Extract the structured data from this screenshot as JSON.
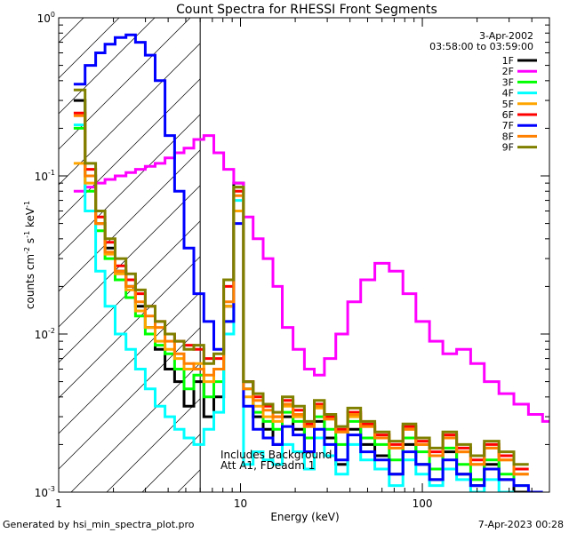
{
  "chart_data": {
    "type": "line",
    "title": "Count Spectra for RHESSI Front Segments",
    "xlabel": "Energy (keV)",
    "ylabel_parts": [
      "counts cm",
      "-2",
      " s",
      "-1",
      " keV",
      "-1"
    ],
    "xscale": "log",
    "yscale": "log",
    "xlim": [
      1,
      500
    ],
    "ylim": [
      0.001,
      1
    ],
    "x_ticks": [
      {
        "value": 1,
        "label": "1"
      },
      {
        "value": 10,
        "label": "10"
      },
      {
        "value": 100,
        "label": "100"
      }
    ],
    "y_ticks": [
      {
        "value": 0.001,
        "base": "10",
        "exp": "-3"
      },
      {
        "value": 0.01,
        "base": "10",
        "exp": "-2"
      },
      {
        "value": 0.1,
        "base": "10",
        "exp": "-1"
      },
      {
        "value": 1,
        "base": "10",
        "exp": "0"
      }
    ],
    "grid": false,
    "legend_position": "top-right",
    "date": "3-Apr-2002",
    "time_range": "03:58:00 to 03:59:00",
    "annotations": [
      "Includes Background",
      "Att A1, FDeadm 1"
    ],
    "hatched_region_xmax": 6,
    "attenuator_line_x": 6,
    "series": [
      {
        "name": "1F",
        "color": "#000000",
        "x": [
          1.3,
          1.5,
          1.7,
          1.9,
          2.2,
          2.5,
          2.8,
          3.2,
          3.6,
          4.1,
          4.6,
          5.2,
          5.9,
          6.7,
          7.6,
          8.6,
          9.8,
          11,
          12.5,
          14.2,
          16,
          18,
          21,
          24,
          27,
          31,
          36,
          42,
          50,
          60,
          72,
          85,
          100,
          120,
          140,
          170,
          200,
          240,
          290,
          350
        ],
        "values": [
          0.3,
          0.1,
          0.05,
          0.035,
          0.025,
          0.02,
          0.015,
          0.011,
          0.008,
          0.006,
          0.005,
          0.0035,
          0.005,
          0.003,
          0.004,
          0.015,
          0.09,
          0.005,
          0.003,
          0.0025,
          0.002,
          0.003,
          0.0025,
          0.0018,
          0.0028,
          0.0022,
          0.0015,
          0.0025,
          0.002,
          0.0017,
          0.0013,
          0.002,
          0.0015,
          0.0012,
          0.0018,
          0.0013,
          0.0011,
          0.0015,
          0.0012,
          0.001
        ]
      },
      {
        "name": "2F",
        "color": "#ff00ff",
        "x": [
          1.3,
          1.5,
          1.7,
          1.9,
          2.2,
          2.5,
          2.8,
          3.2,
          3.6,
          4.1,
          4.6,
          5.2,
          5.9,
          6.7,
          7.6,
          8.6,
          9.8,
          11,
          12.5,
          14.2,
          16,
          18,
          21,
          24,
          27,
          31,
          36,
          42,
          50,
          60,
          72,
          85,
          100,
          120,
          140,
          170,
          200,
          240,
          290,
          350,
          420,
          500
        ],
        "values": [
          0.08,
          0.085,
          0.09,
          0.095,
          0.1,
          0.105,
          0.11,
          0.115,
          0.12,
          0.13,
          0.14,
          0.15,
          0.17,
          0.18,
          0.14,
          0.11,
          0.09,
          0.055,
          0.04,
          0.03,
          0.02,
          0.011,
          0.008,
          0.006,
          0.0055,
          0.007,
          0.01,
          0.016,
          0.022,
          0.028,
          0.025,
          0.018,
          0.012,
          0.009,
          0.0075,
          0.008,
          0.0065,
          0.005,
          0.0042,
          0.0036,
          0.0031,
          0.0028
        ]
      },
      {
        "name": "3F",
        "color": "#00ff00",
        "x": [
          1.3,
          1.5,
          1.7,
          1.9,
          2.2,
          2.5,
          2.8,
          3.2,
          3.6,
          4.1,
          4.6,
          5.2,
          5.9,
          6.7,
          7.6,
          8.6,
          9.8,
          11,
          12.5,
          14.2,
          16,
          18,
          21,
          24,
          27,
          31,
          36,
          42,
          50,
          60,
          72,
          85,
          100,
          120,
          140,
          170,
          200,
          240,
          290,
          350
        ],
        "values": [
          0.2,
          0.08,
          0.045,
          0.03,
          0.022,
          0.017,
          0.013,
          0.01,
          0.0085,
          0.0075,
          0.006,
          0.0045,
          0.0055,
          0.004,
          0.005,
          0.012,
          0.085,
          0.0045,
          0.0032,
          0.0028,
          0.0025,
          0.0032,
          0.0028,
          0.0022,
          0.003,
          0.0025,
          0.002,
          0.0028,
          0.0022,
          0.002,
          0.0016,
          0.0022,
          0.0018,
          0.0014,
          0.0019,
          0.0015,
          0.0012,
          0.0016,
          0.0013,
          0.0011
        ]
      },
      {
        "name": "4F",
        "color": "#00ffff",
        "x": [
          1.3,
          1.5,
          1.7,
          1.9,
          2.2,
          2.5,
          2.8,
          3.2,
          3.6,
          4.1,
          4.6,
          5.2,
          5.9,
          6.7,
          7.6,
          8.6,
          9.8,
          11,
          12.5,
          14.2,
          16,
          18,
          21,
          24,
          27,
          31,
          36,
          42,
          50,
          60,
          72,
          85,
          100,
          120,
          140,
          170,
          200,
          240,
          290
        ],
        "values": [
          0.21,
          0.06,
          0.025,
          0.015,
          0.01,
          0.008,
          0.006,
          0.0045,
          0.0035,
          0.003,
          0.0025,
          0.0022,
          0.002,
          0.0025,
          0.0032,
          0.01,
          0.07,
          0.0015,
          0.0018,
          0.0016,
          0.0015,
          0.002,
          0.0018,
          0.0014,
          0.0022,
          0.0017,
          0.0013,
          0.002,
          0.0016,
          0.0014,
          0.0011,
          0.0016,
          0.0013,
          0.0011,
          0.0014,
          0.0012,
          0.001,
          0.0012,
          0.001
        ]
      },
      {
        "name": "5F",
        "color": "#ffa500",
        "x": [
          1.3,
          1.5,
          1.7,
          1.9,
          2.2,
          2.5,
          2.8,
          3.2,
          3.6,
          4.1,
          4.6,
          5.2,
          5.9,
          6.7,
          7.6,
          8.6,
          9.8,
          11,
          12.5,
          14.2,
          16,
          18,
          21,
          24,
          27,
          31,
          36,
          42,
          50,
          60,
          72,
          85,
          100,
          120,
          140,
          170,
          200,
          240,
          290,
          350
        ],
        "values": [
          0.12,
          0.09,
          0.05,
          0.032,
          0.024,
          0.019,
          0.014,
          0.011,
          0.009,
          0.008,
          0.007,
          0.006,
          0.0065,
          0.005,
          0.006,
          0.015,
          0.06,
          0.004,
          0.0035,
          0.003,
          0.0028,
          0.0035,
          0.003,
          0.0026,
          0.0034,
          0.0029,
          0.0024,
          0.003,
          0.0026,
          0.0022,
          0.0019,
          0.0025,
          0.002,
          0.0017,
          0.0022,
          0.0018,
          0.0015,
          0.0019,
          0.0016,
          0.0013
        ]
      },
      {
        "name": "6F",
        "color": "#ff0000",
        "x": [
          1.3,
          1.5,
          1.7,
          1.9,
          2.2,
          2.5,
          2.8,
          3.2,
          3.6,
          4.1,
          4.6,
          5.2,
          5.9,
          6.7,
          7.6,
          8.6,
          9.8,
          11,
          12.5,
          14.2,
          16,
          18,
          21,
          24,
          27,
          31,
          36,
          42,
          50,
          60,
          72,
          85,
          100,
          120,
          140,
          170,
          200,
          240,
          290,
          350
        ],
        "values": [
          0.25,
          0.11,
          0.055,
          0.038,
          0.027,
          0.022,
          0.018,
          0.015,
          0.012,
          0.01,
          0.009,
          0.0085,
          0.008,
          0.007,
          0.007,
          0.02,
          0.08,
          0.005,
          0.004,
          0.0035,
          0.003,
          0.0038,
          0.0033,
          0.0027,
          0.0036,
          0.003,
          0.0025,
          0.0032,
          0.0027,
          0.0023,
          0.002,
          0.0026,
          0.0021,
          0.0018,
          0.0023,
          0.0019,
          0.0016,
          0.002,
          0.0017,
          0.0014
        ]
      },
      {
        "name": "7F",
        "color": "#0000ff",
        "x": [
          1.3,
          1.5,
          1.7,
          1.9,
          2.2,
          2.5,
          2.8,
          3.2,
          3.6,
          4.1,
          4.6,
          5.2,
          5.9,
          6.7,
          7.6,
          8.6,
          9.8,
          11,
          12.5,
          14.2,
          16,
          18,
          21,
          24,
          27,
          31,
          36,
          42,
          50,
          60,
          72,
          85,
          100,
          120,
          140,
          170,
          200,
          240,
          290,
          350,
          420
        ],
        "values": [
          0.38,
          0.5,
          0.6,
          0.68,
          0.75,
          0.78,
          0.7,
          0.58,
          0.4,
          0.18,
          0.08,
          0.035,
          0.018,
          0.012,
          0.008,
          0.012,
          0.05,
          0.0035,
          0.0025,
          0.0022,
          0.002,
          0.0026,
          0.0023,
          0.0018,
          0.0025,
          0.002,
          0.0016,
          0.0023,
          0.0018,
          0.0016,
          0.0013,
          0.0018,
          0.0015,
          0.0012,
          0.0016,
          0.0013,
          0.0011,
          0.0014,
          0.0012,
          0.0011,
          0.001
        ]
      },
      {
        "name": "8F",
        "color": "#ff8000",
        "x": [
          1.3,
          1.5,
          1.7,
          1.9,
          2.2,
          2.5,
          2.8,
          3.2,
          3.6,
          4.1,
          4.6,
          5.2,
          5.9,
          6.7,
          7.6,
          8.6,
          9.8,
          11,
          12.5,
          14.2,
          16,
          18,
          21,
          24,
          27,
          31,
          36,
          42,
          50,
          60,
          72,
          85,
          100,
          120,
          140,
          170,
          200,
          240,
          290,
          350
        ],
        "values": [
          0.24,
          0.1,
          0.05,
          0.033,
          0.025,
          0.02,
          0.016,
          0.013,
          0.011,
          0.009,
          0.0075,
          0.0065,
          0.006,
          0.0055,
          0.006,
          0.016,
          0.075,
          0.0045,
          0.0038,
          0.0033,
          0.003,
          0.0036,
          0.0031,
          0.0026,
          0.0035,
          0.0029,
          0.0024,
          0.0031,
          0.0026,
          0.0022,
          0.0019,
          0.0025,
          0.002,
          0.0017,
          0.0022,
          0.0018,
          0.0015,
          0.0019,
          0.0016,
          0.0013
        ]
      },
      {
        "name": "9F",
        "color": "#808000",
        "x": [
          1.3,
          1.5,
          1.7,
          1.9,
          2.2,
          2.5,
          2.8,
          3.2,
          3.6,
          4.1,
          4.6,
          5.2,
          5.9,
          6.7,
          7.6,
          8.6,
          9.8,
          11,
          12.5,
          14.2,
          16,
          18,
          21,
          24,
          27,
          31,
          36,
          42,
          50,
          60,
          72,
          85,
          100,
          120,
          140,
          170,
          200,
          240,
          290,
          350
        ],
        "values": [
          0.35,
          0.12,
          0.06,
          0.04,
          0.03,
          0.024,
          0.019,
          0.015,
          0.012,
          0.01,
          0.009,
          0.008,
          0.0085,
          0.0065,
          0.0075,
          0.022,
          0.085,
          0.005,
          0.0042,
          0.0036,
          0.0032,
          0.004,
          0.0035,
          0.0028,
          0.0038,
          0.0031,
          0.0026,
          0.0034,
          0.0028,
          0.0024,
          0.0021,
          0.0027,
          0.0022,
          0.0019,
          0.0024,
          0.002,
          0.0017,
          0.0021,
          0.0018,
          0.0015
        ]
      }
    ]
  },
  "footer": {
    "left": "Generated by hsi_min_spectra_plot.pro",
    "right": "7-Apr-2023 00:28"
  }
}
